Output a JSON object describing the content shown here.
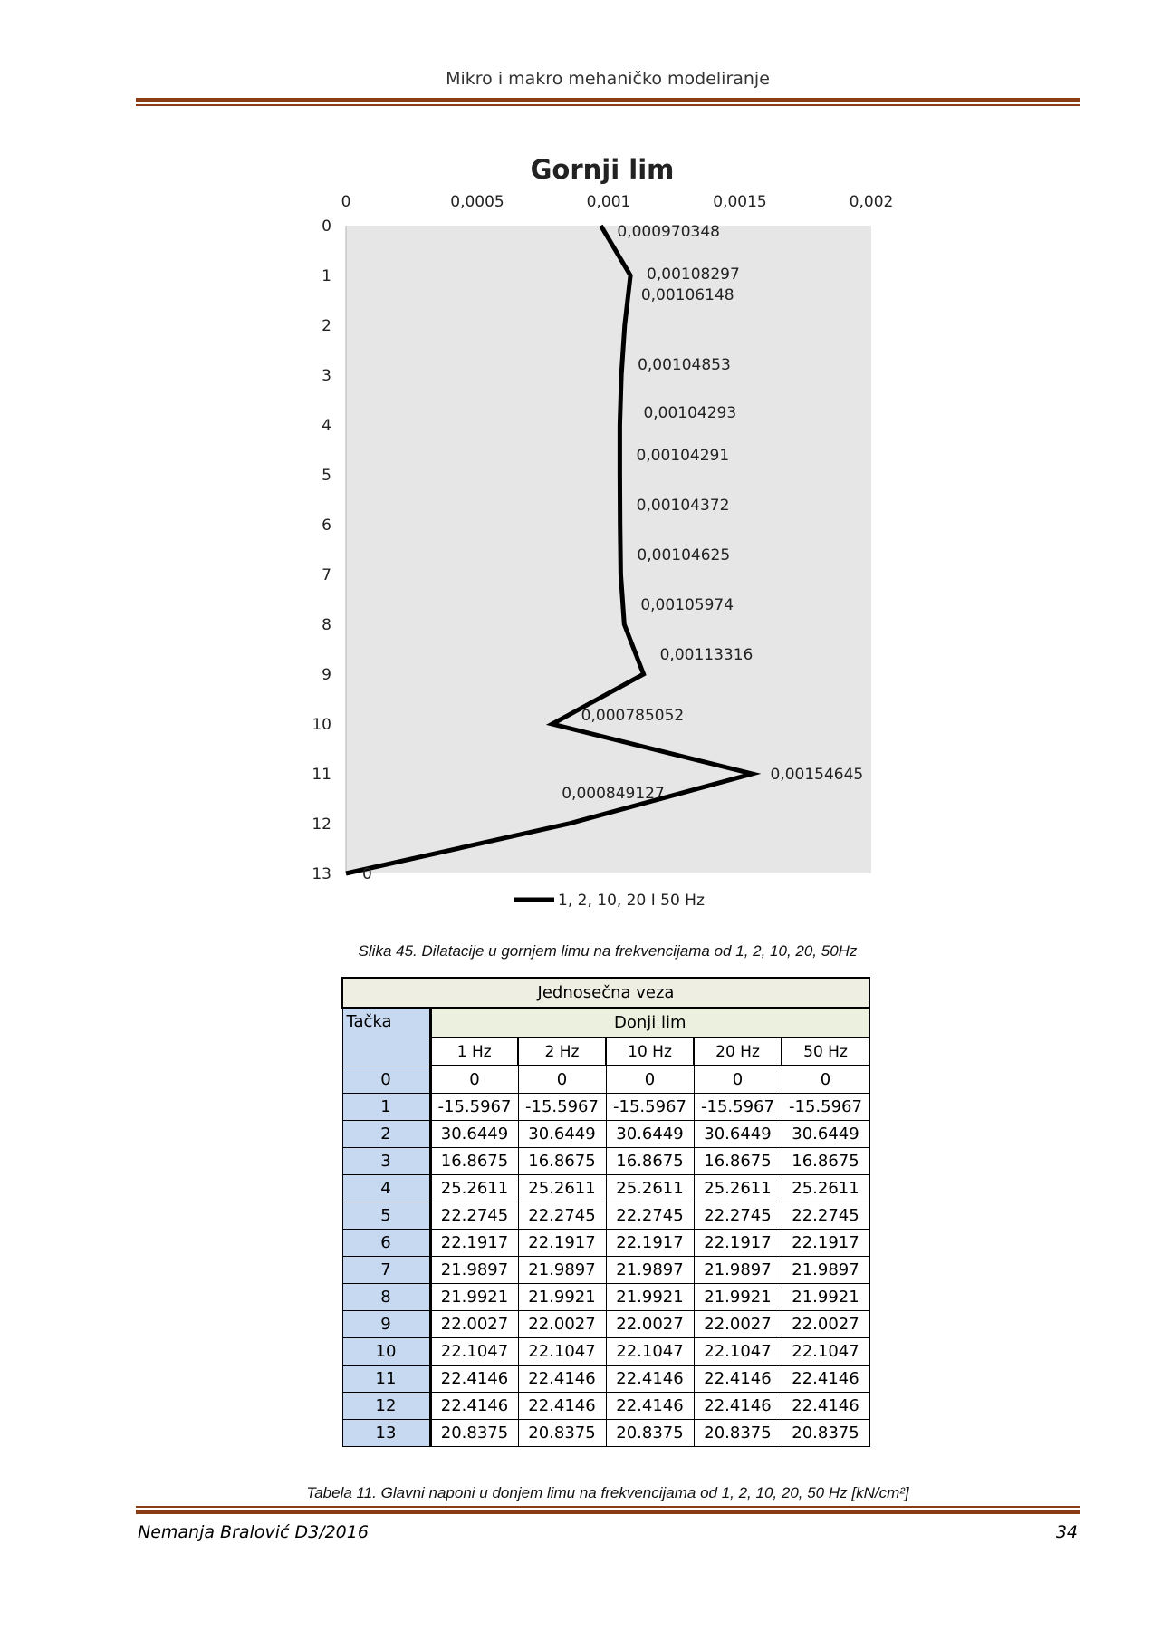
{
  "header": {
    "title": "Mikro i makro mehaničko modeliranje"
  },
  "chart_data": {
    "type": "line",
    "title": "Gornji lim",
    "x_axis_position": "top",
    "xlim": [
      0,
      0.002
    ],
    "x_ticks": [
      "0",
      "0,0005",
      "0,001",
      "0,0015",
      "0,002"
    ],
    "x_tick_values": [
      0,
      0.0005,
      0.001,
      0.0015,
      0.002
    ],
    "y_axis_reversed": true,
    "ylim": [
      0,
      13
    ],
    "y_ticks": [
      "0",
      "1",
      "2",
      "3",
      "4",
      "5",
      "6",
      "7",
      "8",
      "9",
      "10",
      "11",
      "12",
      "13"
    ],
    "grid": false,
    "plot_background": "#e6e6e6",
    "legend_position": "bottom",
    "series": [
      {
        "name": "1, 2, 10, 20 I 50 Hz",
        "color": "#000000",
        "points": [
          {
            "y": 0,
            "x": 0.000970348,
            "label": "0,000970348"
          },
          {
            "y": 1,
            "x": 0.00108297,
            "label": "0,00108297"
          },
          {
            "y": 2,
            "x": 0.00106148,
            "label": "0,00106148"
          },
          {
            "y": 3,
            "x": 0.00104853,
            "label": "0,00104853"
          },
          {
            "y": 4,
            "x": 0.00104293,
            "label": "0,00104293"
          },
          {
            "y": 5,
            "x": 0.00104291,
            "label": "0,00104291"
          },
          {
            "y": 6,
            "x": 0.00104372,
            "label": "0,00104372"
          },
          {
            "y": 7,
            "x": 0.00104625,
            "label": "0,00104625"
          },
          {
            "y": 8,
            "x": 0.00105974,
            "label": "0,00105974"
          },
          {
            "y": 9,
            "x": 0.00113316,
            "label": "0,00113316"
          },
          {
            "y": 10,
            "x": 0.000785052,
            "label": "0,000785052"
          },
          {
            "y": 11,
            "x": 0.00154645,
            "label": "0,00154645"
          },
          {
            "y": 12,
            "x": 0.000849127,
            "label": "0,000849127"
          },
          {
            "y": 13,
            "x": 0,
            "label": "0"
          }
        ]
      }
    ]
  },
  "figure_caption": "Slika 45. Dilatacije u gornjem limu na frekvencijama od 1, 2, 10, 20, 50Hz",
  "table": {
    "title": "Jednosečna veza",
    "point_header": "Tačka",
    "group_header": "Donji lim",
    "columns": [
      "1 Hz",
      "2 Hz",
      "10 Hz",
      "20 Hz",
      "50 Hz"
    ],
    "rows": [
      {
        "point": "0",
        "values": [
          "0",
          "0",
          "0",
          "0",
          "0"
        ]
      },
      {
        "point": "1",
        "values": [
          "-15.5967",
          "-15.5967",
          "-15.5967",
          "-15.5967",
          "-15.5967"
        ]
      },
      {
        "point": "2",
        "values": [
          "30.6449",
          "30.6449",
          "30.6449",
          "30.6449",
          "30.6449"
        ]
      },
      {
        "point": "3",
        "values": [
          "16.8675",
          "16.8675",
          "16.8675",
          "16.8675",
          "16.8675"
        ]
      },
      {
        "point": "4",
        "values": [
          "25.2611",
          "25.2611",
          "25.2611",
          "25.2611",
          "25.2611"
        ]
      },
      {
        "point": "5",
        "values": [
          "22.2745",
          "22.2745",
          "22.2745",
          "22.2745",
          "22.2745"
        ]
      },
      {
        "point": "6",
        "values": [
          "22.1917",
          "22.1917",
          "22.1917",
          "22.1917",
          "22.1917"
        ]
      },
      {
        "point": "7",
        "values": [
          "21.9897",
          "21.9897",
          "21.9897",
          "21.9897",
          "21.9897"
        ]
      },
      {
        "point": "8",
        "values": [
          "21.9921",
          "21.9921",
          "21.9921",
          "21.9921",
          "21.9921"
        ]
      },
      {
        "point": "9",
        "values": [
          "22.0027",
          "22.0027",
          "22.0027",
          "22.0027",
          "22.0027"
        ]
      },
      {
        "point": "10",
        "values": [
          "22.1047",
          "22.1047",
          "22.1047",
          "22.1047",
          "22.1047"
        ]
      },
      {
        "point": "11",
        "values": [
          "22.4146",
          "22.4146",
          "22.4146",
          "22.4146",
          "22.4146"
        ]
      },
      {
        "point": "12",
        "values": [
          "22.4146",
          "22.4146",
          "22.4146",
          "22.4146",
          "22.4146"
        ]
      },
      {
        "point": "13",
        "values": [
          "20.8375",
          "20.8375",
          "20.8375",
          "20.8375",
          "20.8375"
        ]
      }
    ]
  },
  "table_caption": "Tabela 11. Glavni naponi u donjem limu na frekvencijama od 1, 2, 10, 20, 50 Hz  [kN/cm²]",
  "footer": {
    "author": "Nemanja Bralović D3/2016",
    "page_number": "34"
  },
  "colors": {
    "rule": "#8a3d14",
    "table_title_bg": "#eeeee2",
    "table_group_bg": "#ebf1de",
    "table_point_bg": "#c6d9f0"
  }
}
